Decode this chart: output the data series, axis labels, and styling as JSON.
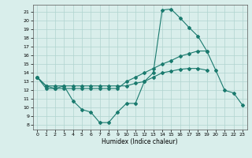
{
  "xlabel": "Humidex (Indice chaleur)",
  "line_color": "#1a7a6e",
  "bg_color": "#d9eeeb",
  "grid_color": "#b0d4cf",
  "x": [
    0,
    1,
    2,
    3,
    4,
    5,
    6,
    7,
    8,
    9,
    10,
    11,
    12,
    13,
    14,
    15,
    16,
    17,
    18,
    19,
    20,
    21,
    22,
    23
  ],
  "y_main": [
    13.5,
    12.5,
    12.2,
    12.5,
    10.8,
    9.8,
    9.5,
    8.3,
    8.3,
    9.5,
    10.5,
    10.5,
    13.0,
    14.0,
    21.2,
    21.3,
    20.3,
    19.2,
    18.2,
    16.5,
    14.3,
    12.0,
    11.7,
    10.3
  ],
  "y_upper": [
    13.5,
    12.2,
    12.2,
    12.2,
    12.2,
    12.2,
    12.2,
    12.2,
    12.2,
    12.2,
    13.0,
    13.5,
    14.0,
    14.5,
    15.0,
    15.4,
    15.9,
    16.2,
    16.5,
    16.5,
    null,
    null,
    null,
    null
  ],
  "y_lower": [
    13.5,
    12.5,
    12.5,
    12.5,
    12.5,
    12.5,
    12.5,
    12.5,
    12.5,
    12.5,
    12.5,
    12.8,
    13.0,
    13.5,
    14.0,
    14.2,
    14.4,
    14.5,
    14.5,
    14.3,
    null,
    null,
    null,
    null
  ],
  "ylim": [
    7.5,
    21.8
  ],
  "xlim": [
    -0.5,
    23.5
  ],
  "yticks": [
    8,
    9,
    10,
    11,
    12,
    13,
    14,
    15,
    16,
    17,
    18,
    19,
    20,
    21
  ],
  "xticks": [
    0,
    1,
    2,
    3,
    4,
    5,
    6,
    7,
    8,
    9,
    10,
    11,
    12,
    13,
    14,
    15,
    16,
    17,
    18,
    19,
    20,
    21,
    22,
    23
  ]
}
